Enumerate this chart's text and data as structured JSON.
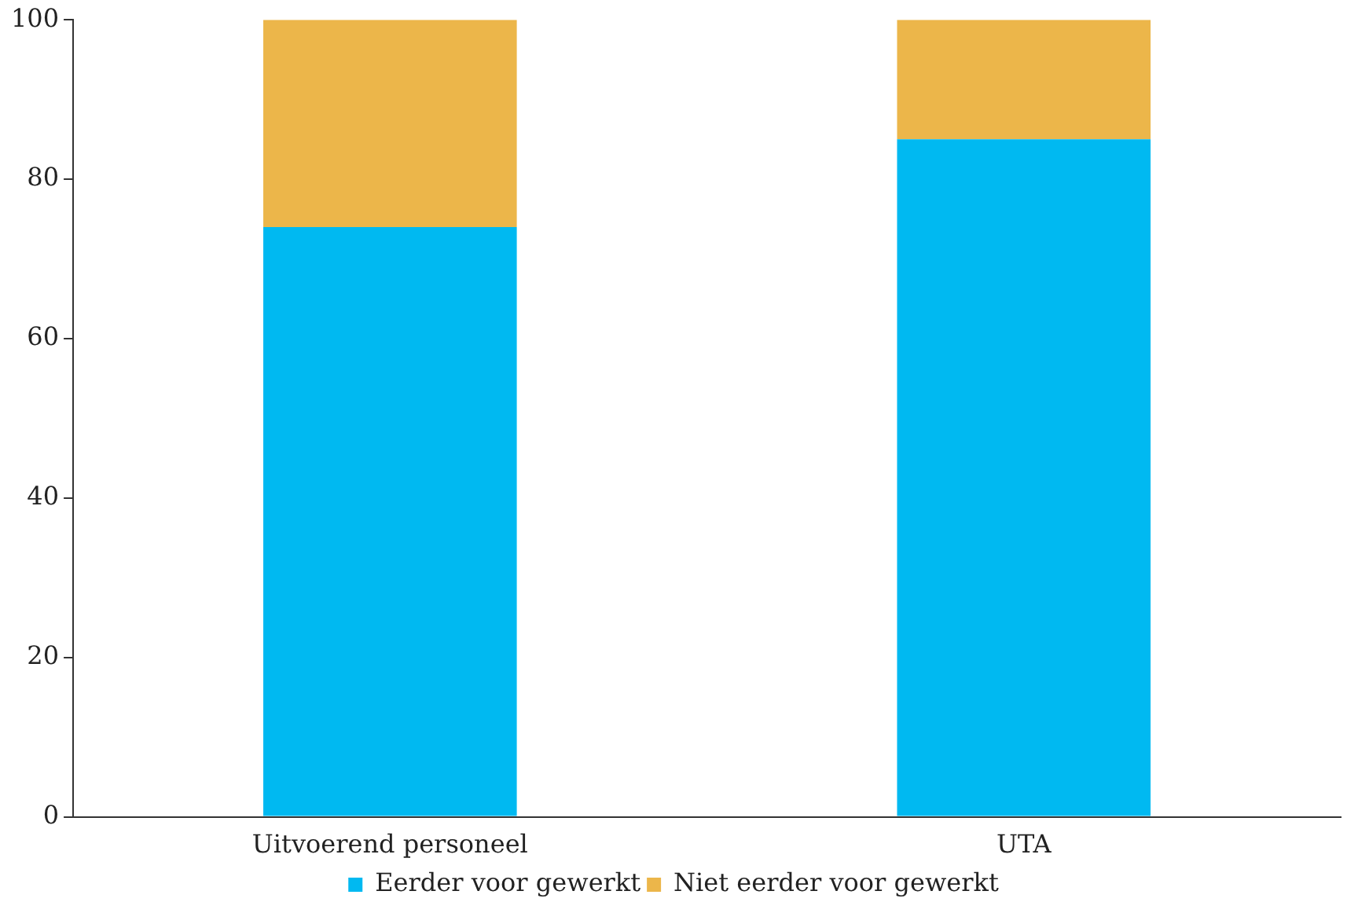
{
  "chart_data": {
    "type": "bar",
    "stacked": true,
    "categories": [
      "Uitvoerend personeel",
      "UTA"
    ],
    "series": [
      {
        "name": "Eerder voor gewerkt",
        "color": "#00b9f1",
        "values": [
          74,
          85
        ]
      },
      {
        "name": "Niet eerder voor gewerkt",
        "color": "#ecb64a",
        "values": [
          26,
          15
        ]
      }
    ],
    "ylim": [
      0,
      100
    ],
    "yticks": [
      0,
      20,
      40,
      60,
      80,
      100
    ],
    "legend": "bottom"
  }
}
